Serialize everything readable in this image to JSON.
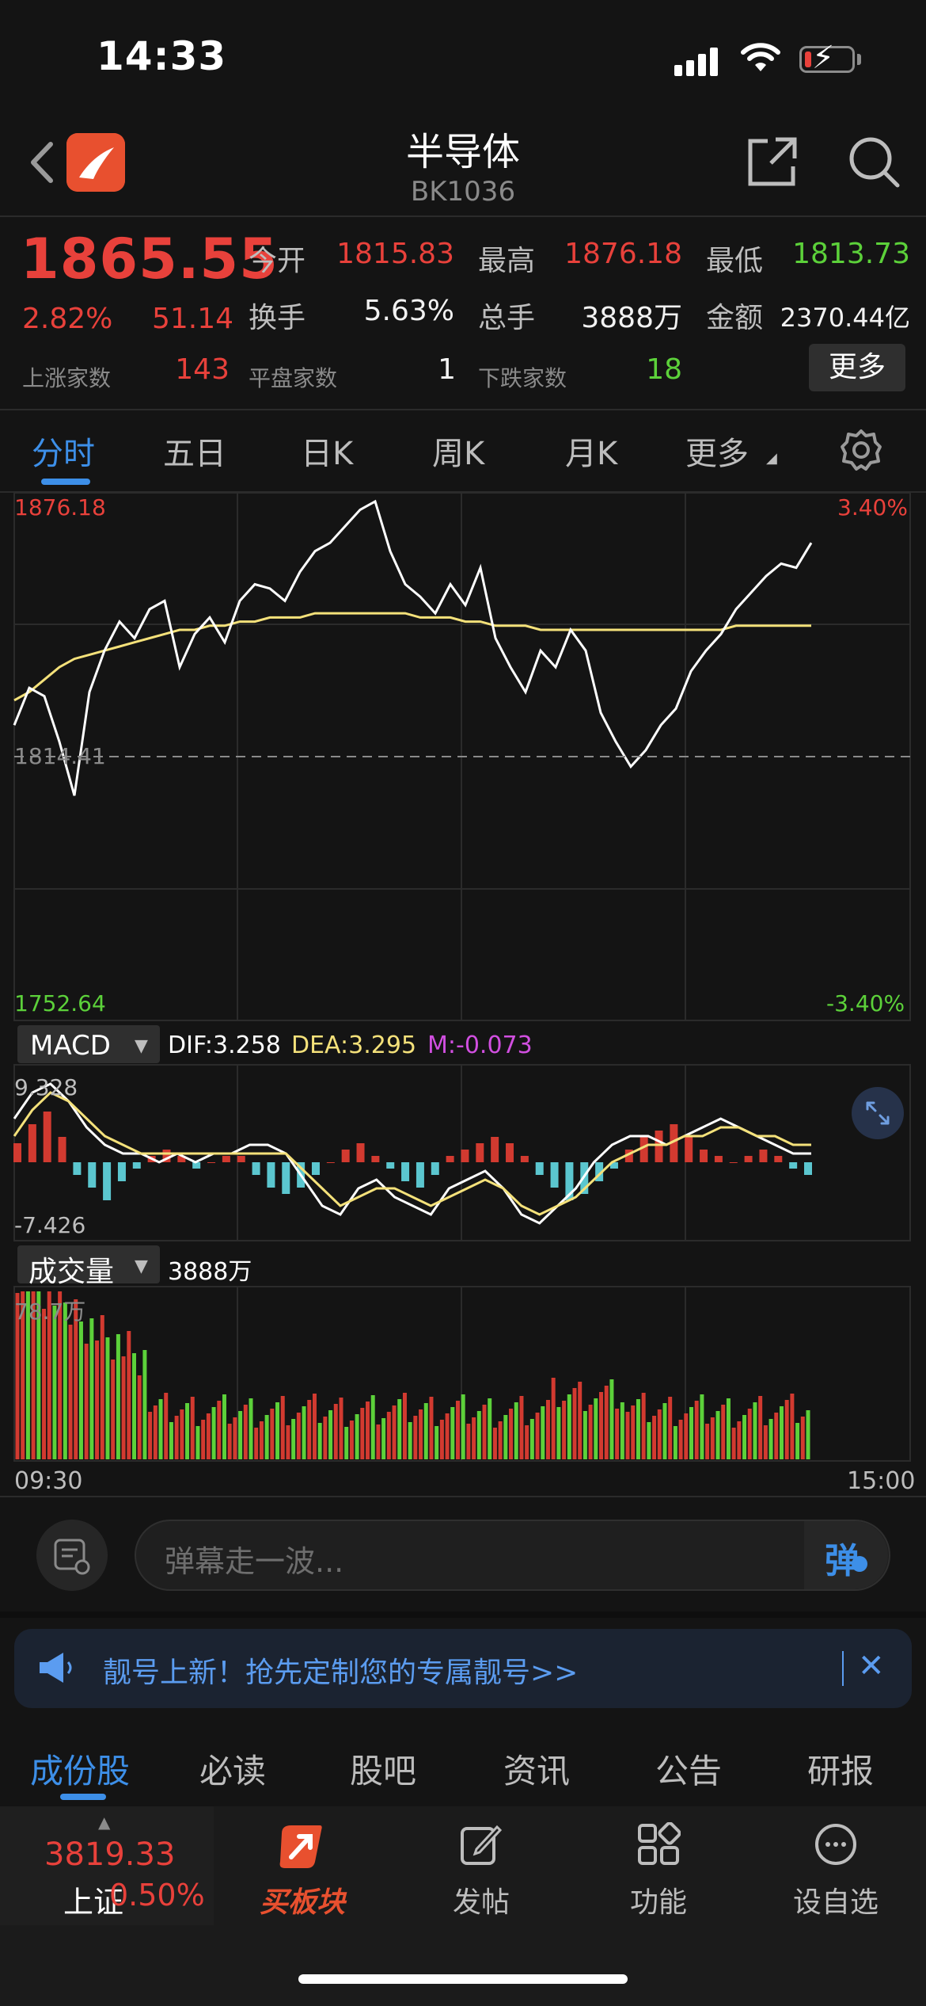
{
  "status_bar": {
    "time": "14:33"
  },
  "header": {
    "title": "半导体",
    "code": "BK1036"
  },
  "quote": {
    "price": "1865.55",
    "change_pct": "2.82%",
    "change_abs": "51.14",
    "open_label": "今开",
    "open": "1815.83",
    "high_label": "最高",
    "high": "1876.18",
    "low_label": "最低",
    "low": "1813.73",
    "turnover_label": "换手",
    "turnover": "5.63%",
    "volume_label": "总手",
    "volume": "3888万",
    "amount_label": "金额",
    "amount": "2370.44亿",
    "up_label": "上涨家数",
    "up_count": "143",
    "flat_label": "平盘家数",
    "flat_count": "1",
    "down_label": "下跌家数",
    "down_count": "18",
    "more_label": "更多"
  },
  "period_tabs": [
    "分时",
    "五日",
    "日K",
    "周K",
    "月K",
    "更多"
  ],
  "intraday": {
    "max_label": "1876.18",
    "prev_close_label": "1814.41",
    "min_label": "1752.64",
    "max_pct": "3.40%",
    "min_pct": "-3.40%",
    "price_series": [
      1822,
      1831,
      1829,
      1818,
      1805,
      1830,
      1840,
      1847,
      1843,
      1850,
      1852,
      1836,
      1844,
      1848,
      1842,
      1852,
      1856,
      1855,
      1852,
      1859,
      1864,
      1866,
      1870,
      1874,
      1876,
      1864,
      1856,
      1853,
      1849,
      1856,
      1851,
      1860,
      1843,
      1836,
      1830,
      1840,
      1836,
      1845,
      1840,
      1825,
      1818,
      1812,
      1816,
      1822,
      1826,
      1835,
      1840,
      1844,
      1850,
      1854,
      1858,
      1861,
      1860,
      1866
    ],
    "avg_series": [
      1828,
      1830,
      1833,
      1836,
      1838,
      1839,
      1840,
      1841,
      1842,
      1843,
      1844,
      1845,
      1845,
      1846,
      1846,
      1847,
      1847,
      1848,
      1848,
      1848,
      1849,
      1849,
      1849,
      1849,
      1849,
      1849,
      1849,
      1848,
      1848,
      1848,
      1847,
      1847,
      1846,
      1846,
      1846,
      1845,
      1845,
      1845,
      1845,
      1845,
      1845,
      1845,
      1845,
      1845,
      1845,
      1845,
      1845,
      1845,
      1846,
      1846,
      1846,
      1846,
      1846,
      1846
    ],
    "price_color": "#ffffff",
    "avg_color": "#f4e17a"
  },
  "macd": {
    "name": "MACD",
    "dif": "DIF:3.258",
    "dea": "DEA:3.295",
    "m": "M:-0.073",
    "max_label": "9.328",
    "min_label": "-7.426",
    "bars": [
      3,
      6,
      8,
      4,
      -2,
      -4,
      -6,
      -3,
      -1,
      1,
      2,
      1,
      -1,
      0,
      1,
      1,
      -2,
      -4,
      -5,
      -4,
      -2,
      0,
      2,
      3,
      1,
      -1,
      -3,
      -4,
      -2,
      1,
      2,
      3,
      4,
      3,
      1,
      -2,
      -4,
      -6,
      -5,
      -3,
      -1,
      2,
      4,
      5,
      6,
      4,
      2,
      1,
      0,
      1,
      2,
      1,
      -1,
      -2
    ],
    "dif_series": [
      5,
      8,
      9,
      7,
      4,
      2,
      1,
      1,
      0,
      1,
      0,
      1,
      1,
      2,
      2,
      1,
      -2,
      -5,
      -6,
      -3,
      -2,
      -4,
      -5,
      -6,
      -3,
      -2,
      -1,
      -3,
      -6,
      -7,
      -5,
      -3,
      0,
      2,
      3,
      3,
      2,
      3,
      4,
      5,
      4,
      3,
      2,
      1,
      1
    ],
    "dea_series": [
      3,
      6,
      8,
      7,
      5,
      3,
      2,
      1,
      1,
      1,
      1,
      1,
      1,
      1,
      1,
      1,
      -1,
      -3,
      -5,
      -4,
      -3,
      -3,
      -4,
      -5,
      -4,
      -3,
      -2,
      -3,
      -5,
      -6,
      -5,
      -4,
      -2,
      0,
      1,
      2,
      2,
      3,
      3,
      4,
      4,
      3,
      3,
      2,
      2
    ]
  },
  "volume": {
    "name": "成交量",
    "total": "3888万",
    "max_label": "78.7万",
    "time_start": "09:30",
    "time_end": "15:00"
  },
  "danmu": {
    "placeholder": "弹幕走一波...",
    "send_label": "弹"
  },
  "banner": {
    "text": "靓号上新！抢先定制您的专属靓号>>"
  },
  "content_tabs": [
    "成份股",
    "必读",
    "股吧",
    "资讯",
    "公告",
    "研报"
  ],
  "index": {
    "value": "3819.33",
    "name": "上证",
    "pct": "0.50%"
  },
  "tab_bar": [
    "买板块",
    "发帖",
    "功能",
    "设自选"
  ],
  "colors": {
    "up": "#e8413b",
    "down": "#5cd13a",
    "accent": "#3d8fe8"
  }
}
